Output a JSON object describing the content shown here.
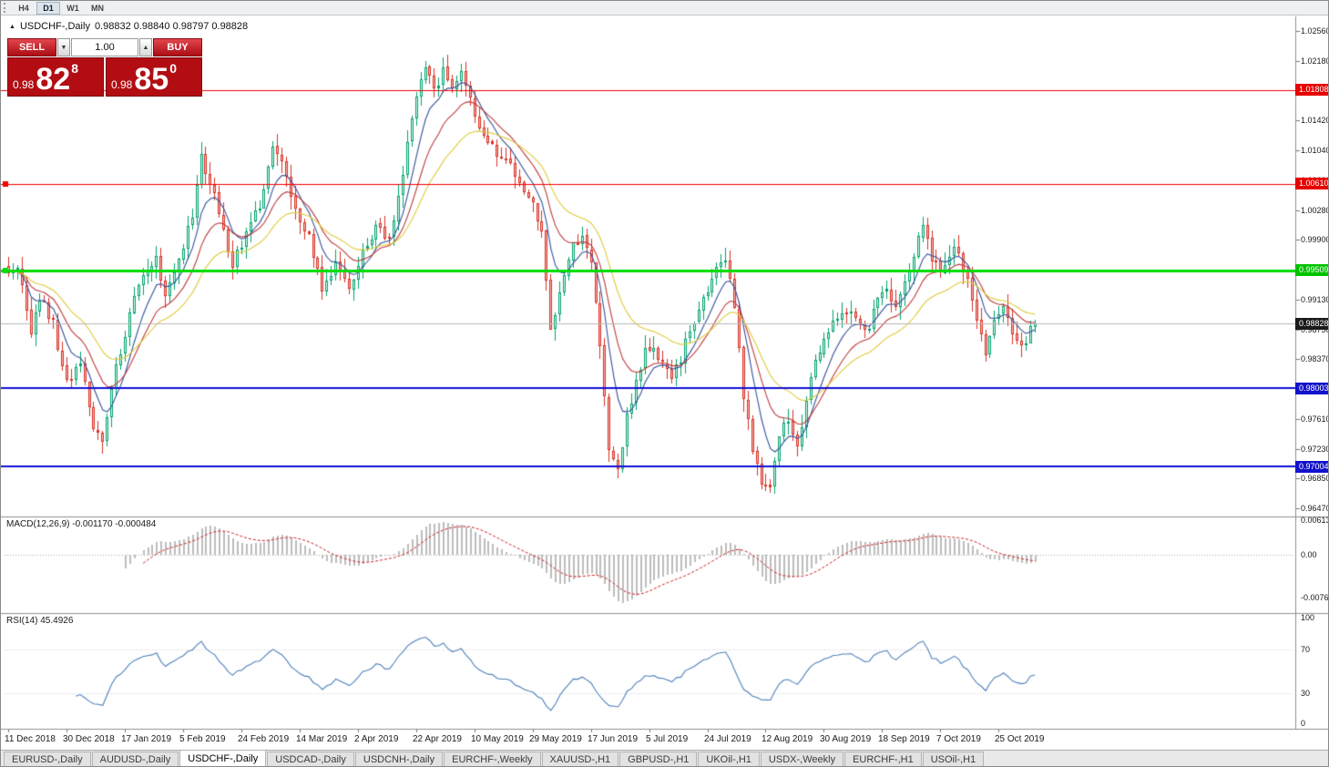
{
  "toolbar": {
    "timeframes": [
      {
        "label": "H4",
        "active": false
      },
      {
        "label": "D1",
        "active": true
      },
      {
        "label": "W1",
        "active": false
      },
      {
        "label": "MN",
        "active": false
      }
    ]
  },
  "chart": {
    "symbol_title": "USDCHF-,Daily",
    "ohlc": "0.98832 0.98840 0.98797 0.98828"
  },
  "trade_panel": {
    "sell_label": "SELL",
    "buy_label": "BUY",
    "volume": "1.00",
    "sell_price_prefix": "0.98",
    "sell_price_main": "82",
    "sell_price_pip": "8",
    "buy_price_prefix": "0.98",
    "buy_price_main": "85",
    "buy_price_pip": "0"
  },
  "price_axis": {
    "ticks": [
      "1.02560",
      "1.02180",
      "1.01800",
      "1.01420",
      "1.01040",
      "1.00660",
      "1.00280",
      "0.99900",
      "0.99520",
      "0.99130",
      "0.98750",
      "0.98370",
      "0.97990",
      "0.97610",
      "0.97230",
      "0.96850",
      "0.96470"
    ],
    "badges": [
      {
        "text": "1.01808",
        "price": 1.01808,
        "color": "#e60000"
      },
      {
        "text": "1.00610",
        "price": 1.0061,
        "color": "#e60000"
      },
      {
        "text": "0.99509",
        "price": 0.99509,
        "color": "#00c300"
      },
      {
        "text": "0.98828",
        "price": 0.98828,
        "color": "#1a1a1a"
      },
      {
        "text": "0.98003",
        "price": 0.98003,
        "color": "#1212cc"
      },
      {
        "text": "0.97004",
        "price": 0.97004,
        "color": "#1212cc"
      }
    ]
  },
  "macd_panel": {
    "label": "MACD(12,26,9) -0.001170 -0.000484",
    "ticks": [
      {
        "text": "0.00613",
        "value": 0.00613
      },
      {
        "text": "0.00",
        "value": 0
      },
      {
        "text": "-0.00761",
        "value": -0.00761
      }
    ]
  },
  "rsi_panel": {
    "label": "RSI(14) 45.4926",
    "ticks": [
      {
        "text": "100",
        "value": 100
      },
      {
        "text": "70",
        "value": 70
      },
      {
        "text": "30",
        "value": 30
      },
      {
        "text": "0",
        "value": 0
      }
    ]
  },
  "date_axis": {
    "labels": [
      "11 Dec 2018",
      "30 Dec 2018",
      "17 Jan 2019",
      "5 Feb 2019",
      "24 Feb 2019",
      "14 Mar 2019",
      "2 Apr 2019",
      "22 Apr 2019",
      "10 May 2019",
      "29 May 2019",
      "17 Jun 2019",
      "5 Jul 2019",
      "24 Jul 2019",
      "12 Aug 2019",
      "30 Aug 2019",
      "18 Sep 2019",
      "7 Oct 2019",
      "25 Oct 2019"
    ]
  },
  "tabs": [
    {
      "label": "EURUSD-,Daily",
      "active": false
    },
    {
      "label": "AUDUSD-,Daily",
      "active": false
    },
    {
      "label": "USDCHF-,Daily",
      "active": true
    },
    {
      "label": "USDCAD-,Daily",
      "active": false
    },
    {
      "label": "USDCNH-,Daily",
      "active": false
    },
    {
      "label": "EURCHF-,Weekly",
      "active": false
    },
    {
      "label": "XAUUSD-,H1",
      "active": false
    },
    {
      "label": "GBPUSD-,H1",
      "active": false
    },
    {
      "label": "UKOil-,H1",
      "active": false
    },
    {
      "label": "USDX-,Weekly",
      "active": false
    },
    {
      "label": "EURCHF-,H1",
      "active": false
    },
    {
      "label": "USOil-,H1",
      "active": false
    }
  ],
  "chart_data": {
    "type": "candlestick",
    "symbol": "USDCHF-",
    "timeframe": "Daily",
    "bar_count": 230,
    "last_close": 0.98828,
    "open": 0.98832,
    "high": 0.9884,
    "low": 0.98797,
    "close": 0.98828,
    "y_axis_range": [
      0.9647,
      1.0256
    ],
    "close_anchors": [
      [
        0,
        0.9945
      ],
      [
        2,
        0.9958
      ],
      [
        5,
        0.9872
      ],
      [
        7,
        0.9918
      ],
      [
        10,
        0.9882
      ],
      [
        13,
        0.9806
      ],
      [
        16,
        0.9832
      ],
      [
        19,
        0.9748
      ],
      [
        21,
        0.9738
      ],
      [
        23,
        0.98
      ],
      [
        27,
        0.9896
      ],
      [
        30,
        0.995
      ],
      [
        33,
        0.9962
      ],
      [
        35,
        0.9921
      ],
      [
        38,
        0.9958
      ],
      [
        41,
        1.0022
      ],
      [
        43,
        1.0094
      ],
      [
        46,
        1.0046
      ],
      [
        50,
        0.9958
      ],
      [
        53,
        0.9996
      ],
      [
        56,
        1.0036
      ],
      [
        59,
        1.0108
      ],
      [
        61,
        1.0084
      ],
      [
        64,
        1.0022
      ],
      [
        67,
        0.999
      ],
      [
        70,
        0.9926
      ],
      [
        73,
        0.9956
      ],
      [
        76,
        0.993
      ],
      [
        79,
        0.997
      ],
      [
        82,
        1.0002
      ],
      [
        85,
        0.9996
      ],
      [
        87,
        1.0046
      ],
      [
        89,
        1.0108
      ],
      [
        91,
        1.0168
      ],
      [
        93,
        1.0205
      ],
      [
        95,
        1.018
      ],
      [
        97,
        1.0206
      ],
      [
        99,
        1.018
      ],
      [
        101,
        1.0208
      ],
      [
        103,
        1.0166
      ],
      [
        106,
        1.0116
      ],
      [
        109,
        1.01
      ],
      [
        112,
        1.0088
      ],
      [
        115,
        1.0048
      ],
      [
        117,
        1.003
      ],
      [
        119,
        1.0002
      ],
      [
        121,
        0.9872
      ],
      [
        123,
        0.992
      ],
      [
        126,
        0.9984
      ],
      [
        128,
        0.9996
      ],
      [
        130,
        0.9956
      ],
      [
        132,
        0.9852
      ],
      [
        134,
        0.9726
      ],
      [
        136,
        0.9702
      ],
      [
        138,
        0.9762
      ],
      [
        140,
        0.9812
      ],
      [
        142,
        0.9846
      ],
      [
        144,
        0.9856
      ],
      [
        146,
        0.983
      ],
      [
        148,
        0.9812
      ],
      [
        150,
        0.984
      ],
      [
        152,
        0.9872
      ],
      [
        154,
        0.9902
      ],
      [
        156,
        0.993
      ],
      [
        158,
        0.995
      ],
      [
        160,
        0.9968
      ],
      [
        162,
        0.9898
      ],
      [
        164,
        0.9792
      ],
      [
        166,
        0.9722
      ],
      [
        168,
        0.9678
      ],
      [
        170,
        0.9672
      ],
      [
        172,
        0.9744
      ],
      [
        174,
        0.9762
      ],
      [
        176,
        0.9722
      ],
      [
        178,
        0.9782
      ],
      [
        180,
        0.9832
      ],
      [
        183,
        0.9876
      ],
      [
        186,
        0.9898
      ],
      [
        189,
        0.989
      ],
      [
        192,
        0.9878
      ],
      [
        195,
        0.9926
      ],
      [
        198,
        0.9906
      ],
      [
        201,
        0.995
      ],
      [
        204,
        1.0008
      ],
      [
        206,
        0.9964
      ],
      [
        208,
        0.995
      ],
      [
        211,
        0.9984
      ],
      [
        214,
        0.994
      ],
      [
        216,
        0.988
      ],
      [
        218,
        0.9846
      ],
      [
        220,
        0.9886
      ],
      [
        222,
        0.9908
      ],
      [
        224,
        0.9868
      ],
      [
        226,
        0.985
      ],
      [
        229,
        0.98828
      ]
    ],
    "horizontal_lines": [
      {
        "price": 1.01808,
        "color": "#f40000",
        "width": 1,
        "handle": false
      },
      {
        "price": 1.0061,
        "color": "#f40000",
        "width": 1,
        "handle": true
      },
      {
        "price": 0.99509,
        "color": "#00dd00",
        "width": 3,
        "handle": true
      },
      {
        "price": 0.98828,
        "color": "#b8b8b8",
        "width": 1,
        "handle": false,
        "role": "current-price-line"
      },
      {
        "price": 0.98003,
        "color": "#1010d6",
        "width": 2,
        "handle": false
      },
      {
        "price": 0.97004,
        "color": "#1010d6",
        "width": 2,
        "handle": false
      }
    ],
    "moving_averages": [
      {
        "period": 7,
        "color": "#34519e"
      },
      {
        "period": 14,
        "color": "#c03a3a"
      },
      {
        "period": 26,
        "color": "#e0cb3c"
      }
    ],
    "macd": {
      "fast": 12,
      "slow": 26,
      "signal": 9,
      "main_value": -0.00117,
      "signal_value": -0.000484,
      "axis_max": 0.00613,
      "axis_min": -0.00761
    },
    "rsi": {
      "period": 14,
      "value": 45.4926,
      "levels": [
        30,
        70
      ]
    }
  }
}
